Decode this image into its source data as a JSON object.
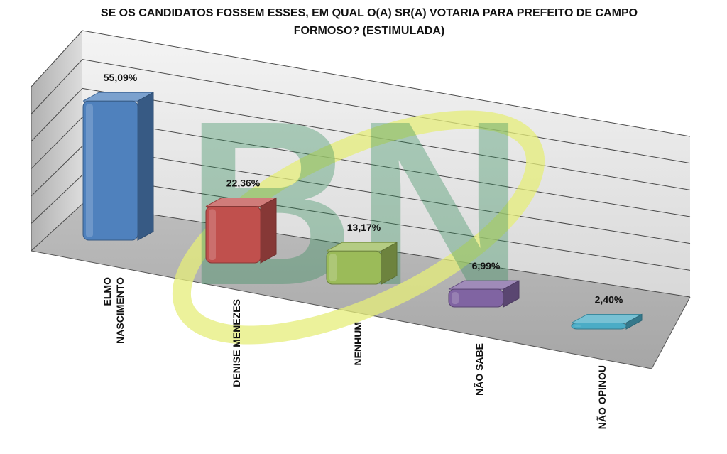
{
  "chart_data": {
    "type": "bar",
    "title_lines": [
      "SE OS CANDIDATOS FOSSEM ESSES, EM QUAL O(A) SR(A) VOTARIA PARA PREFEITO DE CAMPO",
      "FORMOSO? (ESTIMULADA)"
    ],
    "categories": [
      [
        "ELMO",
        "NASCIMENTO"
      ],
      [
        "DENISE MENEZES"
      ],
      [
        "NENHUM"
      ],
      [
        "NÃO SABE"
      ],
      [
        "NÃO OPINOU"
      ]
    ],
    "values": [
      55.09,
      22.36,
      13.17,
      6.99,
      2.4
    ],
    "value_labels": [
      "55,09%",
      "22,36%",
      "13,17%",
      "6,99%",
      "2,40%"
    ],
    "colors": [
      "#4F81BD",
      "#C0504D",
      "#9BBB59",
      "#8064A2",
      "#4BACC6"
    ],
    "ylim": [
      0,
      60
    ],
    "grid": true,
    "legend": "none",
    "view": "3d-perspective",
    "watermark": {
      "text": "BN",
      "letter_color": "#2E8B57",
      "swoosh_color": "#E6EE7A"
    }
  }
}
